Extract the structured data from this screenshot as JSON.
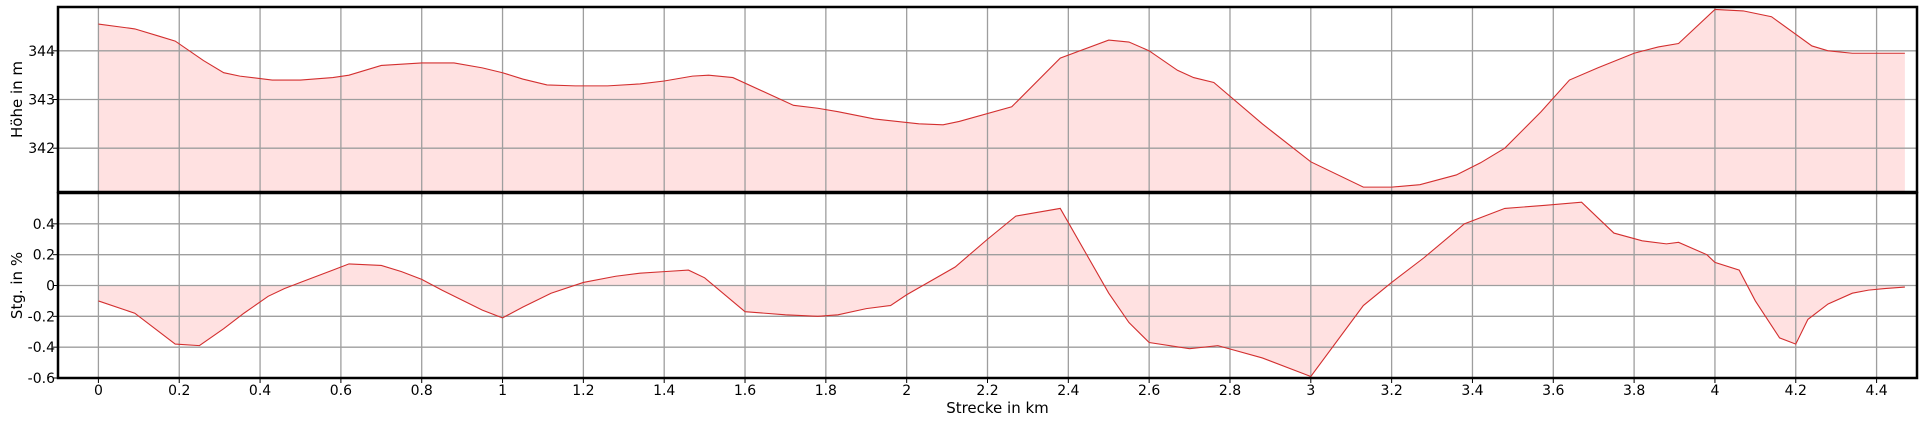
{
  "chart_data": [
    {
      "type": "area",
      "ylabel": "Höhe in m",
      "xlabel": "",
      "xlim": [
        -0.1,
        4.5
      ],
      "ylim": [
        341.1,
        344.9
      ],
      "xticks": [
        0,
        0.2,
        0.4,
        0.6,
        0.8,
        1,
        1.2,
        1.4,
        1.6,
        1.8,
        2,
        2.2,
        2.4,
        2.6,
        2.8,
        3,
        3.2,
        3.4,
        3.6,
        3.8,
        4,
        4.2,
        4.4
      ],
      "yticks": [
        342,
        343,
        344
      ],
      "grid": true,
      "color": "#d32f2f",
      "fill": "#ffe1e1",
      "x": [
        0,
        0.09,
        0.15,
        0.19,
        0.26,
        0.31,
        0.35,
        0.43,
        0.5,
        0.58,
        0.62,
        0.7,
        0.8,
        0.88,
        0.95,
        1.0,
        1.05,
        1.11,
        1.18,
        1.26,
        1.34,
        1.4,
        1.47,
        1.51,
        1.57,
        1.72,
        1.78,
        1.83,
        1.92,
        2.03,
        2.09,
        2.13,
        2.26,
        2.38,
        2.5,
        2.55,
        2.6,
        2.67,
        2.71,
        2.76,
        2.88,
        3.0,
        3.13,
        3.2,
        3.27,
        3.36,
        3.42,
        3.48,
        3.57,
        3.64,
        3.71,
        3.8,
        3.86,
        3.91,
        4.0,
        4.07,
        4.14,
        4.24,
        4.28,
        4.34,
        4.41,
        4.47
      ],
      "y": [
        344.55,
        344.45,
        344.3,
        344.2,
        343.8,
        343.55,
        343.48,
        343.4,
        343.4,
        343.45,
        343.5,
        343.7,
        343.75,
        343.75,
        343.65,
        343.55,
        343.42,
        343.3,
        343.28,
        343.28,
        343.32,
        343.38,
        343.48,
        343.5,
        343.45,
        342.88,
        342.82,
        342.75,
        342.6,
        342.5,
        342.48,
        342.55,
        342.85,
        343.85,
        344.22,
        344.18,
        344.0,
        343.6,
        343.45,
        343.35,
        342.5,
        341.72,
        341.2,
        341.2,
        341.25,
        341.45,
        341.7,
        342.0,
        342.75,
        343.4,
        343.65,
        343.95,
        344.08,
        344.15,
        344.85,
        344.82,
        344.7,
        344.1,
        344.0,
        343.95,
        343.95,
        343.95
      ]
    },
    {
      "type": "area",
      "ylabel": "Stg. in %",
      "xlabel": "Strecke in km",
      "xlim": [
        -0.1,
        4.5
      ],
      "ylim": [
        -0.6,
        0.6
      ],
      "xticks": [
        0,
        0.2,
        0.4,
        0.6,
        0.8,
        1,
        1.2,
        1.4,
        1.6,
        1.8,
        2,
        2.2,
        2.4,
        2.6,
        2.8,
        3,
        3.2,
        3.4,
        3.6,
        3.8,
        4,
        4.2,
        4.4
      ],
      "xtick_labels": [
        "0",
        "0.2",
        "0.4",
        "0.6",
        "0.8",
        "1",
        "1.2",
        "1.4",
        "1.6",
        "1.8",
        "2",
        "2.2",
        "2.4",
        "2.6",
        "2.8",
        "3",
        "3.2",
        "3.4",
        "3.6",
        "3.8",
        "4",
        "4.2",
        "4.4"
      ],
      "yticks": [
        -0.6,
        -0.4,
        -0.2,
        0,
        0.2,
        0.4
      ],
      "ytick_labels": [
        "-0.6",
        "-0.4",
        "-0.2",
        "0",
        "0.2",
        "0.4"
      ],
      "grid": true,
      "color": "#d32f2f",
      "fill": "#ffe1e1",
      "x": [
        0,
        0.09,
        0.19,
        0.25,
        0.31,
        0.36,
        0.42,
        0.46,
        0.5,
        0.54,
        0.58,
        0.62,
        0.7,
        0.75,
        0.8,
        0.85,
        0.95,
        1.0,
        1.05,
        1.12,
        1.2,
        1.28,
        1.34,
        1.4,
        1.46,
        1.5,
        1.6,
        1.7,
        1.78,
        1.83,
        1.9,
        1.96,
        2.0,
        2.12,
        2.2,
        2.27,
        2.38,
        2.5,
        2.55,
        2.6,
        2.7,
        2.77,
        2.88,
        3.0,
        3.13,
        3.2,
        3.28,
        3.38,
        3.48,
        3.58,
        3.67,
        3.71,
        3.75,
        3.82,
        3.88,
        3.91,
        3.98,
        4.0,
        4.06,
        4.1,
        4.16,
        4.2,
        4.23,
        4.28,
        4.34,
        4.38,
        4.42,
        4.47
      ],
      "y": [
        -0.1,
        -0.18,
        -0.38,
        -0.39,
        -0.28,
        -0.18,
        -0.07,
        -0.02,
        0.02,
        0.06,
        0.1,
        0.14,
        0.13,
        0.09,
        0.04,
        -0.03,
        -0.16,
        -0.21,
        -0.14,
        -0.05,
        0.02,
        0.06,
        0.08,
        0.09,
        0.1,
        0.05,
        -0.17,
        -0.19,
        -0.2,
        -0.19,
        -0.15,
        -0.13,
        -0.06,
        0.12,
        0.3,
        0.45,
        0.5,
        -0.05,
        -0.24,
        -0.37,
        -0.41,
        -0.39,
        -0.47,
        -0.59,
        -0.13,
        0.02,
        0.18,
        0.4,
        0.5,
        0.52,
        0.54,
        0.44,
        0.34,
        0.29,
        0.27,
        0.28,
        0.2,
        0.15,
        0.1,
        -0.1,
        -0.34,
        -0.38,
        -0.22,
        -0.12,
        -0.05,
        -0.03,
        -0.02,
        -0.01
      ]
    }
  ]
}
